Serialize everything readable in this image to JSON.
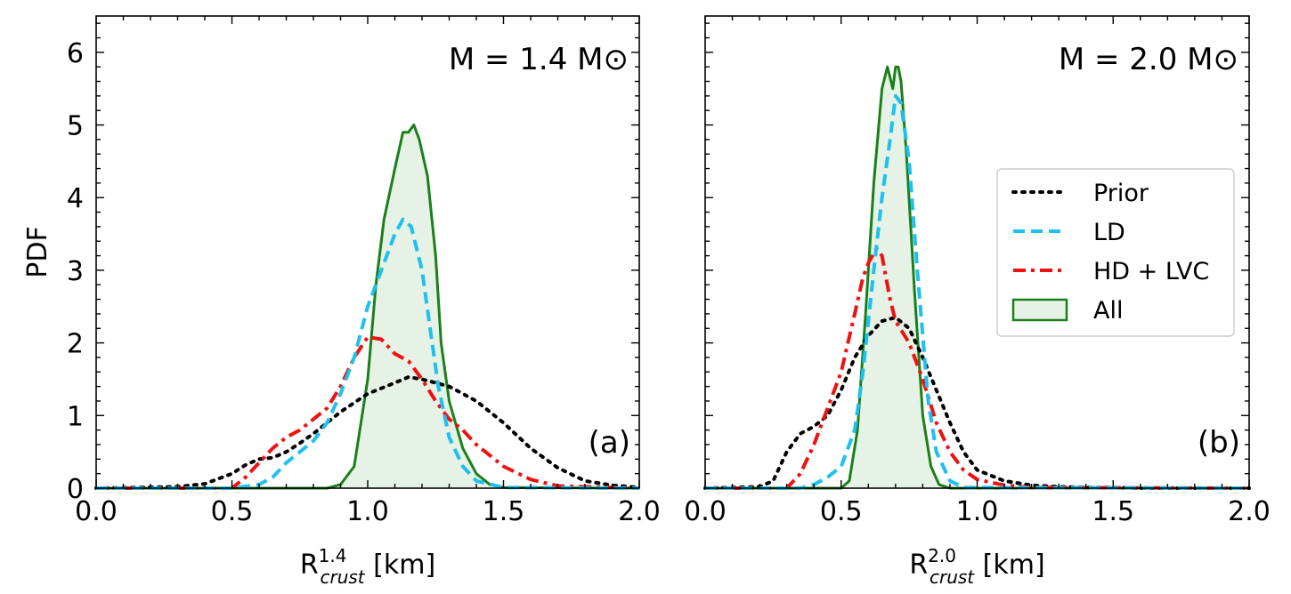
{
  "chart_data": [
    {
      "type": "line",
      "panel_label": "(a)",
      "annotation": "M = 1.4 M⊙",
      "xlabel": {
        "base": "R",
        "sup": "1.4",
        "sub": "crust",
        "unit": " [km]"
      },
      "ylabel": "PDF",
      "xlim": [
        0,
        2.0
      ],
      "ylim": [
        0,
        6.5
      ],
      "xticks": [
        0.0,
        0.5,
        1.0,
        1.5,
        2.0
      ],
      "xtick_labels": [
        "0.0",
        "0.5",
        "1.0",
        "1.5",
        "2.0"
      ],
      "yticks": [
        0,
        1,
        2,
        3,
        4,
        5,
        6
      ],
      "ytick_labels": [
        "0",
        "1",
        "2",
        "3",
        "4",
        "5",
        "6"
      ],
      "series": [
        {
          "name": "Prior",
          "x": [
            0.0,
            0.3,
            0.4,
            0.5,
            0.55,
            0.6,
            0.65,
            0.7,
            0.75,
            0.8,
            0.9,
            1.0,
            1.1,
            1.15,
            1.2,
            1.3,
            1.4,
            1.5,
            1.6,
            1.7,
            1.8,
            1.9,
            2.0
          ],
          "y": [
            0,
            0.02,
            0.06,
            0.2,
            0.32,
            0.4,
            0.42,
            0.5,
            0.62,
            0.75,
            1.05,
            1.3,
            1.45,
            1.53,
            1.5,
            1.4,
            1.2,
            0.9,
            0.55,
            0.28,
            0.1,
            0.04,
            0.01
          ]
        },
        {
          "name": "LD",
          "x": [
            0.0,
            0.5,
            0.6,
            0.65,
            0.7,
            0.75,
            0.8,
            0.85,
            0.9,
            0.95,
            1.0,
            1.05,
            1.1,
            1.13,
            1.16,
            1.2,
            1.23,
            1.26,
            1.3,
            1.35,
            1.4,
            1.5,
            2.0
          ],
          "y": [
            0,
            0,
            0.05,
            0.15,
            0.35,
            0.5,
            0.65,
            0.9,
            1.3,
            1.8,
            2.5,
            3.0,
            3.5,
            3.7,
            3.6,
            3.0,
            2.2,
            1.4,
            0.7,
            0.3,
            0.1,
            0.01,
            0
          ]
        },
        {
          "name": "HD + LVC",
          "x": [
            0.0,
            0.5,
            0.55,
            0.6,
            0.65,
            0.7,
            0.75,
            0.8,
            0.85,
            0.9,
            0.95,
            1.0,
            1.05,
            1.1,
            1.15,
            1.2,
            1.25,
            1.3,
            1.35,
            1.4,
            1.45,
            1.5,
            1.6,
            1.7,
            2.0
          ],
          "y": [
            0,
            0,
            0.15,
            0.35,
            0.55,
            0.7,
            0.8,
            0.95,
            1.1,
            1.4,
            1.8,
            2.08,
            2.05,
            1.85,
            1.75,
            1.5,
            1.2,
            0.95,
            0.8,
            0.6,
            0.45,
            0.3,
            0.12,
            0.03,
            0
          ]
        },
        {
          "name": "All",
          "x": [
            0.0,
            0.85,
            0.9,
            0.95,
            1.0,
            1.03,
            1.06,
            1.1,
            1.13,
            1.15,
            1.17,
            1.19,
            1.22,
            1.25,
            1.27,
            1.3,
            1.35,
            1.4,
            1.45,
            1.5,
            2.0
          ],
          "y": [
            0,
            0,
            0.05,
            0.3,
            1.5,
            2.8,
            3.7,
            4.4,
            4.9,
            4.9,
            5.0,
            4.8,
            4.3,
            3.2,
            2.0,
            1.2,
            0.55,
            0.2,
            0.05,
            0.01,
            0
          ]
        }
      ]
    },
    {
      "type": "line",
      "panel_label": "(b)",
      "annotation": "M = 2.0 M⊙",
      "xlabel": {
        "base": "R",
        "sup": "2.0",
        "sub": "crust",
        "unit": " [km]"
      },
      "ylabel": "",
      "xlim": [
        0,
        2.0
      ],
      "ylim": [
        0,
        6.5
      ],
      "xticks": [
        0.0,
        0.5,
        1.0,
        1.5,
        2.0
      ],
      "xtick_labels": [
        "0.0",
        "0.5",
        "1.0",
        "1.5",
        "2.0"
      ],
      "yticks": [
        0,
        1,
        2,
        3,
        4,
        5,
        6
      ],
      "ytick_labels": [],
      "series": [
        {
          "name": "Prior",
          "x": [
            0.0,
            0.2,
            0.25,
            0.3,
            0.35,
            0.4,
            0.45,
            0.5,
            0.55,
            0.6,
            0.65,
            0.7,
            0.75,
            0.8,
            0.85,
            0.9,
            0.95,
            1.0,
            1.1,
            1.2,
            1.3,
            1.4,
            1.5,
            1.6,
            2.0
          ],
          "y": [
            0,
            0.02,
            0.1,
            0.5,
            0.75,
            0.85,
            1.0,
            1.35,
            1.8,
            2.1,
            2.3,
            2.35,
            2.2,
            1.8,
            1.35,
            0.9,
            0.5,
            0.25,
            0.1,
            0.04,
            0.02,
            0.01,
            0.01,
            0.0,
            0
          ]
        },
        {
          "name": "LD",
          "x": [
            0.0,
            0.35,
            0.4,
            0.45,
            0.5,
            0.55,
            0.58,
            0.62,
            0.65,
            0.68,
            0.7,
            0.72,
            0.75,
            0.78,
            0.82,
            0.85,
            0.9,
            0.95,
            2.0
          ],
          "y": [
            0,
            0,
            0.05,
            0.15,
            0.3,
            0.8,
            1.6,
            3.0,
            4.0,
            4.8,
            5.4,
            5.3,
            4.5,
            3.0,
            1.2,
            0.5,
            0.1,
            0.01,
            0
          ]
        },
        {
          "name": "HD + LVC",
          "x": [
            0.0,
            0.3,
            0.35,
            0.4,
            0.45,
            0.5,
            0.55,
            0.58,
            0.6,
            0.63,
            0.65,
            0.68,
            0.7,
            0.75,
            0.8,
            0.85,
            0.9,
            0.95,
            1.0,
            1.1,
            1.2,
            2.0
          ],
          "y": [
            0,
            0,
            0.2,
            0.6,
            1.1,
            1.6,
            2.4,
            2.9,
            3.1,
            3.3,
            3.2,
            2.6,
            2.3,
            2.0,
            1.5,
            0.9,
            0.5,
            0.25,
            0.12,
            0.04,
            0.01,
            0
          ]
        },
        {
          "name": "All",
          "x": [
            0.0,
            0.5,
            0.53,
            0.56,
            0.59,
            0.62,
            0.65,
            0.67,
            0.69,
            0.7,
            0.71,
            0.72,
            0.74,
            0.77,
            0.8,
            0.83,
            0.86,
            0.9,
            2.0
          ],
          "y": [
            0,
            0,
            0.1,
            0.8,
            2.4,
            4.2,
            5.5,
            5.8,
            5.5,
            5.8,
            5.8,
            5.6,
            4.6,
            2.7,
            1.0,
            0.3,
            0.05,
            0.0,
            0
          ]
        }
      ]
    }
  ],
  "legend": {
    "placement": "center-right of panel (b)",
    "entries": [
      {
        "name": "Prior",
        "color": "#000000",
        "style": "dotted"
      },
      {
        "name": "LD",
        "color": "#1ec0f0",
        "style": "dashed"
      },
      {
        "name": "HD + LVC",
        "color": "#ee1111",
        "style": "dashdot"
      },
      {
        "name": "All",
        "color": "#1a801a",
        "style": "filled",
        "fill": "#e6f2e6"
      }
    ]
  }
}
